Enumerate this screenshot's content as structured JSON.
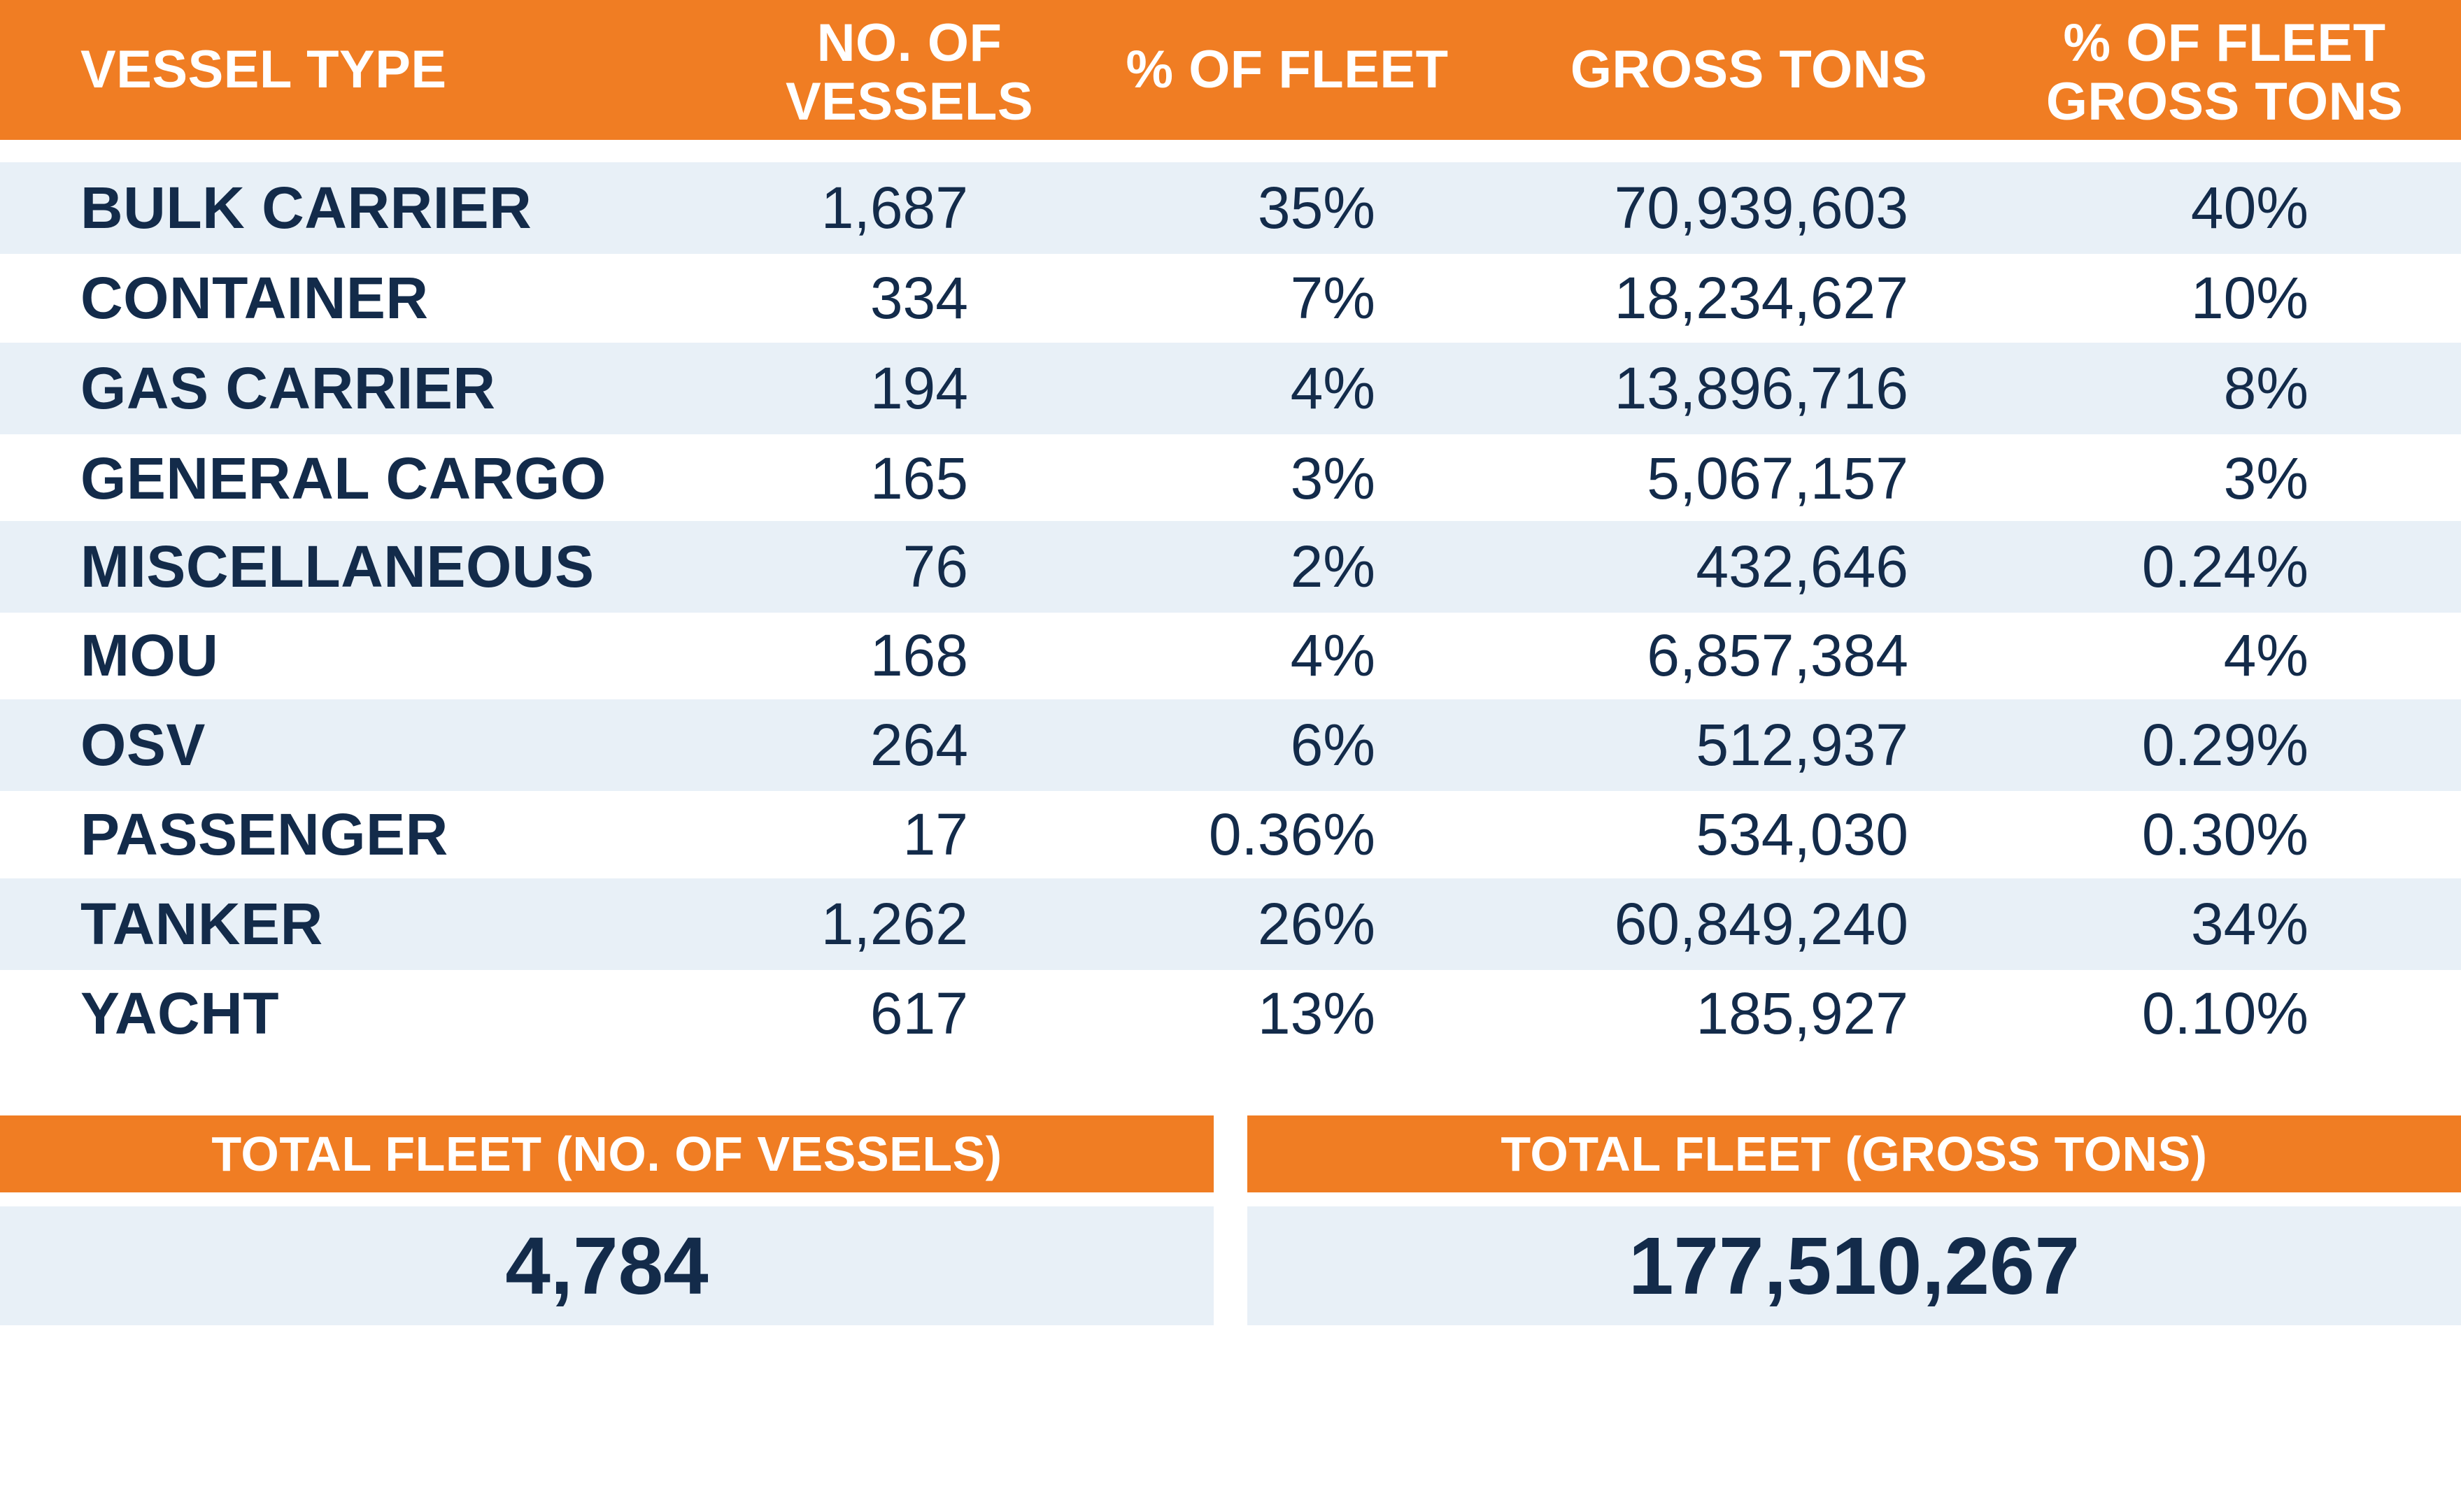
{
  "header": {
    "vessel_type": "VESSEL TYPE",
    "no_of_vessels": "NO. OF\nVESSELS",
    "pct_of_fleet": "% OF FLEET",
    "gross_tons": "GROSS TONS",
    "pct_of_fleet_gross_tons": "% OF FLEET\nGROSS TONS"
  },
  "rows": [
    {
      "type": "BULK CARRIER",
      "vessels": "1,687",
      "pct_fleet": "35%",
      "gross_tons": "70,939,603",
      "pct_gross": "40%"
    },
    {
      "type": "CONTAINER",
      "vessels": "334",
      "pct_fleet": "7%",
      "gross_tons": "18,234,627",
      "pct_gross": "10%"
    },
    {
      "type": "GAS CARRIER",
      "vessels": "194",
      "pct_fleet": "4%",
      "gross_tons": "13,896,716",
      "pct_gross": "8%"
    },
    {
      "type": "GENERAL CARGO",
      "vessels": "165",
      "pct_fleet": "3%",
      "gross_tons": "5,067,157",
      "pct_gross": "3%"
    },
    {
      "type": "MISCELLANEOUS",
      "vessels": "76",
      "pct_fleet": "2%",
      "gross_tons": "432,646",
      "pct_gross": "0.24%"
    },
    {
      "type": "MOU",
      "vessels": "168",
      "pct_fleet": "4%",
      "gross_tons": "6,857,384",
      "pct_gross": "4%"
    },
    {
      "type": "OSV",
      "vessels": "264",
      "pct_fleet": "6%",
      "gross_tons": "512,937",
      "pct_gross": "0.29%"
    },
    {
      "type": "PASSENGER",
      "vessels": "17",
      "pct_fleet": "0.36%",
      "gross_tons": "534,030",
      "pct_gross": "0.30%"
    },
    {
      "type": "TANKER",
      "vessels": "1,262",
      "pct_fleet": "26%",
      "gross_tons": "60,849,240",
      "pct_gross": "34%"
    },
    {
      "type": "YACHT",
      "vessels": "617",
      "pct_fleet": "13%",
      "gross_tons": "185,927",
      "pct_gross": "0.10%"
    }
  ],
  "totals": {
    "vessels_label": "TOTAL FLEET (NO. OF VESSELS)",
    "vessels_value": "4,784",
    "gross_label": "TOTAL FLEET (GROSS TONS)",
    "gross_value": "177,510,267"
  },
  "colors": {
    "accent_orange": "#f07d23",
    "row_shade": "#e8f0f7",
    "text_navy": "#132b4a"
  }
}
